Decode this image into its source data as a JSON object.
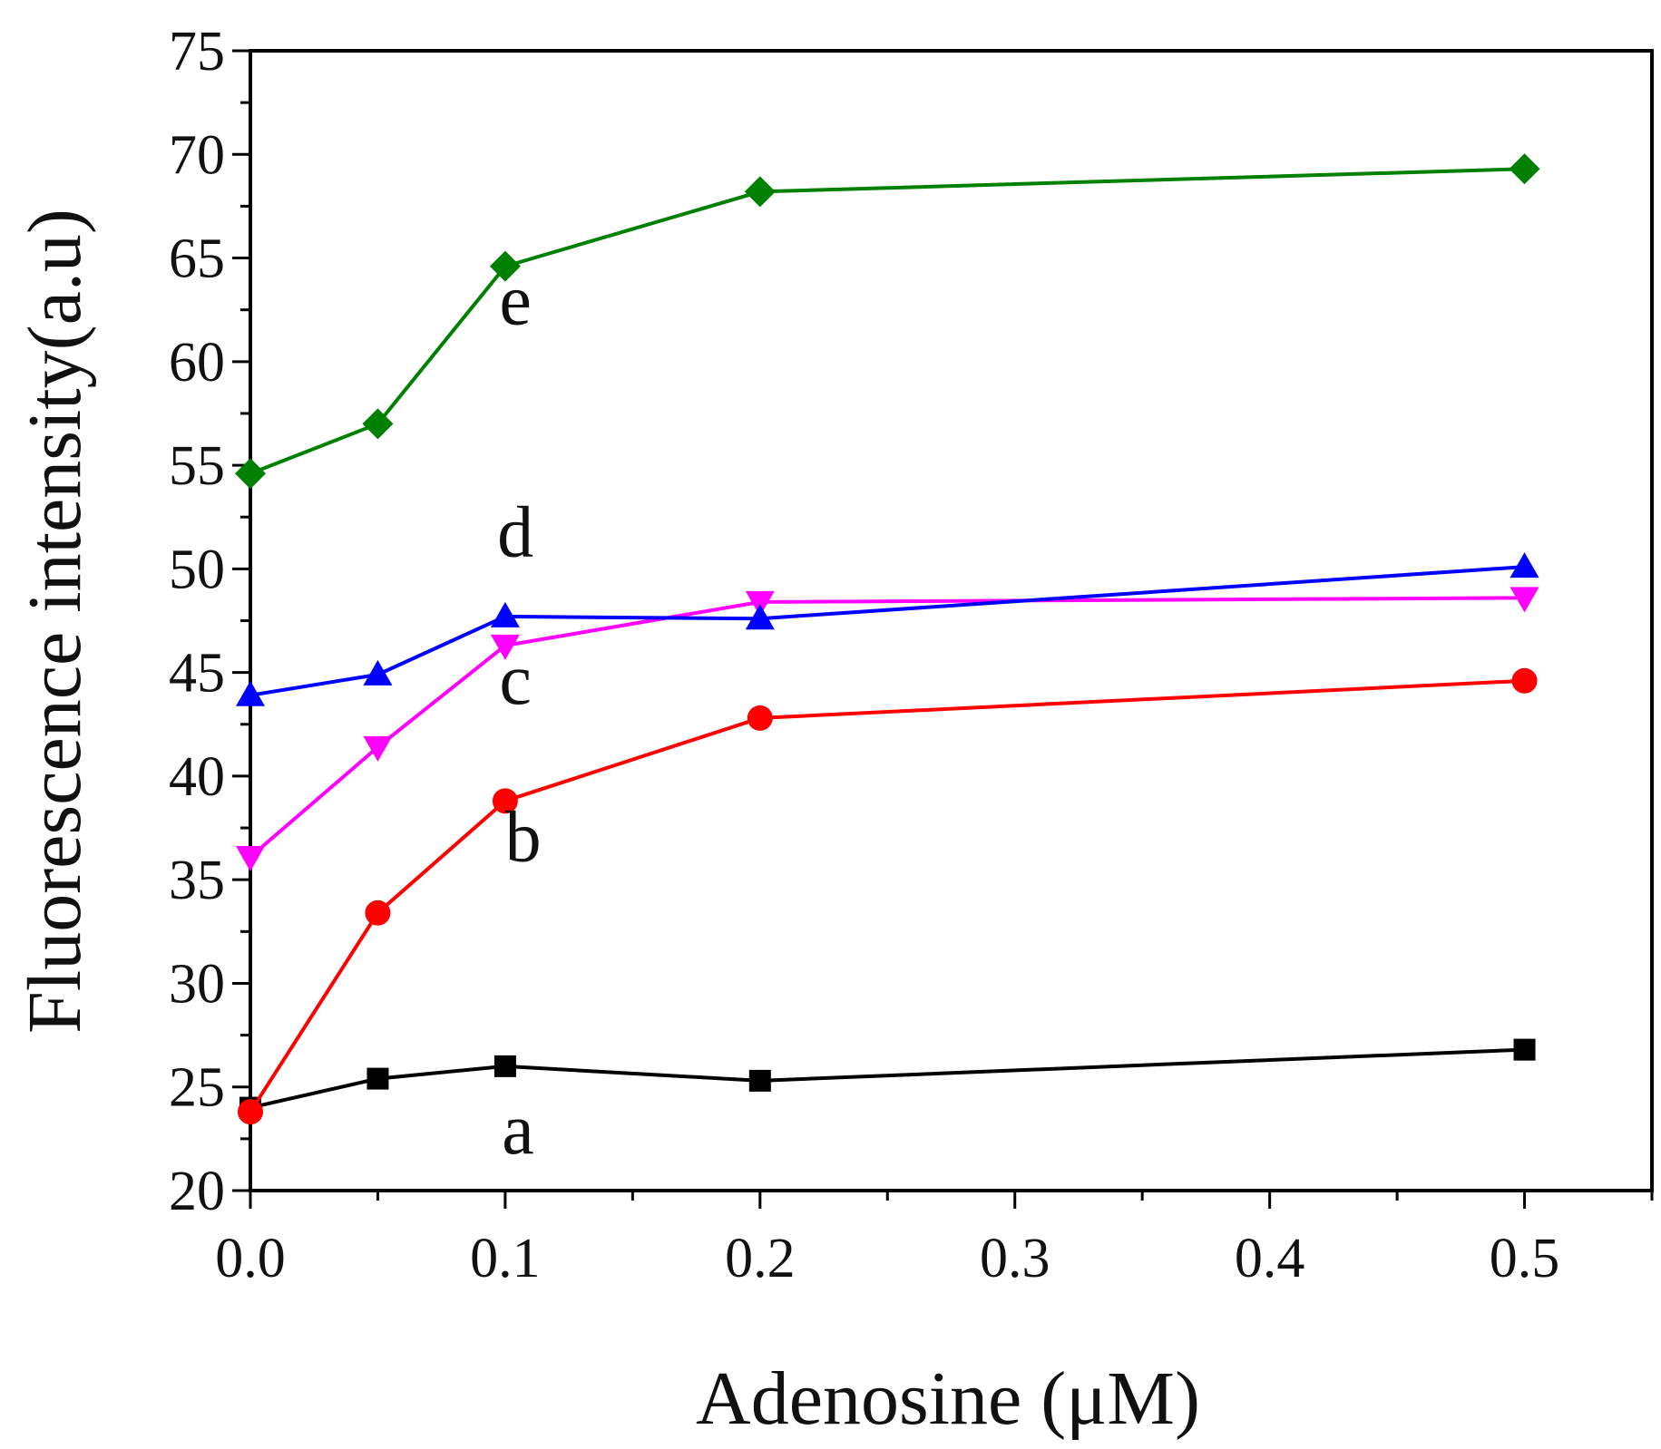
{
  "chart_data": {
    "type": "line",
    "title": "",
    "xlabel": "Adenosine (μM)",
    "ylabel": "Fluorescence intensity(a.u)",
    "xlim": [
      0,
      0.55
    ],
    "ylim": [
      20,
      75
    ],
    "x": [
      0.0,
      0.05,
      0.1,
      0.2,
      0.5
    ],
    "xticks": [
      0.0,
      0.1,
      0.2,
      0.3,
      0.4,
      0.5
    ],
    "xtick_labels": [
      "0.0",
      "0.1",
      "0.2",
      "0.3",
      "0.4",
      "0.5"
    ],
    "yticks": [
      20,
      25,
      30,
      35,
      40,
      45,
      50,
      55,
      60,
      65,
      70,
      75
    ],
    "ytick_labels": [
      "20",
      "25",
      "30",
      "35",
      "40",
      "45",
      "50",
      "55",
      "60",
      "65",
      "70",
      "75"
    ],
    "grid": false,
    "legend": "none",
    "series": [
      {
        "name": "a",
        "color": "#000000",
        "marker": "square",
        "values": [
          24.0,
          25.4,
          26.0,
          25.3,
          26.8
        ]
      },
      {
        "name": "b",
        "color": "#ff0000",
        "marker": "circle",
        "values": [
          23.8,
          33.4,
          38.8,
          42.8,
          44.6
        ]
      },
      {
        "name": "c",
        "color": "#ff00ff",
        "marker": "triangle-down",
        "values": [
          36.1,
          41.4,
          46.3,
          48.4,
          48.6
        ]
      },
      {
        "name": "d",
        "color": "#0000ff",
        "marker": "triangle-up",
        "values": [
          43.9,
          44.9,
          47.7,
          47.6,
          50.1
        ]
      },
      {
        "name": "e",
        "color": "#008000",
        "marker": "diamond",
        "values": [
          54.6,
          57.0,
          64.6,
          68.2,
          69.3
        ]
      }
    ],
    "annotations": [
      {
        "text": "a",
        "x": 0.105,
        "y": 21.8
      },
      {
        "text": "b",
        "x": 0.107,
        "y": 35.9
      },
      {
        "text": "c",
        "x": 0.104,
        "y": 43.5
      },
      {
        "text": "d",
        "x": 0.104,
        "y": 50.6
      },
      {
        "text": "e",
        "x": 0.104,
        "y": 61.8
      }
    ]
  }
}
